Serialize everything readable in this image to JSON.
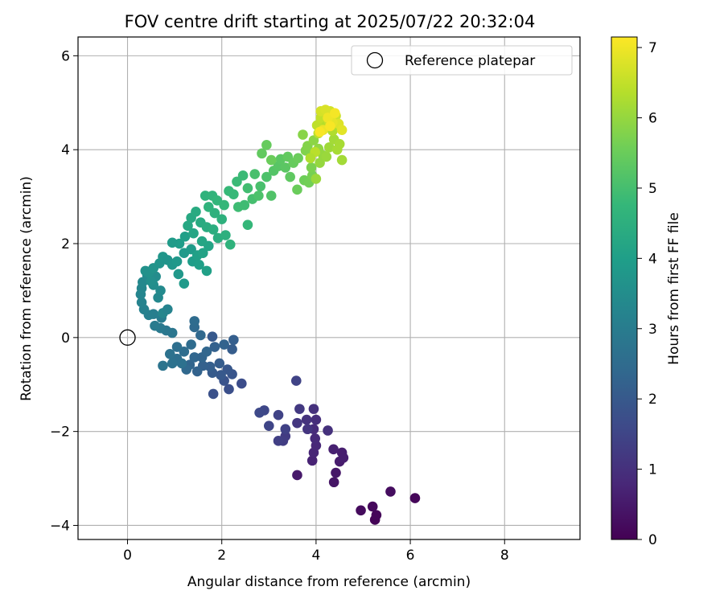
{
  "chart_data": {
    "type": "scatter",
    "title": "FOV centre drift starting at 2025/07/22 20:32:04",
    "xlabel": "Angular distance from reference (arcmin)",
    "ylabel": "Rotation from reference (arcmin)",
    "xlim": [
      -1.05,
      9.6
    ],
    "ylim": [
      -4.3,
      6.4
    ],
    "xticks": [
      0,
      2,
      4,
      6,
      8
    ],
    "yticks": [
      -4,
      -2,
      0,
      2,
      4,
      6
    ],
    "grid": true,
    "legend": {
      "placement": "top-right",
      "entries": [
        "Reference platepar"
      ]
    },
    "reference_point": {
      "x": 0,
      "y": 0
    },
    "colorbar": {
      "label": "Hours from first FF file",
      "colormap": "viridis",
      "range": [
        0,
        7.15
      ],
      "ticks": [
        0,
        1,
        2,
        3,
        4,
        5,
        6,
        7
      ]
    },
    "colormap_stops": [
      "#440154",
      "#482878",
      "#3e4989",
      "#31688e",
      "#26828e",
      "#1f9e89",
      "#35b779",
      "#6ece58",
      "#b5de2b",
      "#fde725"
    ],
    "series": [
      {
        "points": [
          [
            5.25,
            -3.88,
            0.05
          ],
          [
            5.28,
            -3.78,
            0.1
          ],
          [
            5.2,
            -3.6,
            0.15
          ],
          [
            4.95,
            -3.68,
            0.2
          ],
          [
            5.58,
            -3.28,
            0.25
          ],
          [
            6.1,
            -3.42,
            0.1
          ],
          [
            4.38,
            -3.08,
            0.4
          ],
          [
            4.42,
            -2.88,
            0.45
          ],
          [
            3.6,
            -2.93,
            0.5
          ],
          [
            4.5,
            -2.64,
            0.55
          ],
          [
            4.55,
            -2.45,
            0.6
          ],
          [
            4.58,
            -2.56,
            0.6
          ],
          [
            4.37,
            -2.38,
            0.65
          ],
          [
            3.92,
            -2.62,
            0.7
          ],
          [
            3.95,
            -2.45,
            0.75
          ],
          [
            4.0,
            -2.3,
            0.8
          ],
          [
            3.98,
            -2.15,
            0.85
          ],
          [
            3.95,
            -1.95,
            0.9
          ],
          [
            4.0,
            -1.75,
            0.95
          ],
          [
            3.95,
            -1.52,
            1.0
          ],
          [
            4.25,
            -1.98,
            1.0
          ],
          [
            3.8,
            -1.75,
            1.05
          ],
          [
            3.82,
            -1.95,
            1.1
          ],
          [
            3.6,
            -1.82,
            1.15
          ],
          [
            3.65,
            -1.52,
            1.2
          ],
          [
            3.35,
            -2.1,
            1.25
          ],
          [
            3.3,
            -2.2,
            1.3
          ],
          [
            3.2,
            -2.2,
            1.35
          ],
          [
            3.35,
            -1.95,
            1.4
          ],
          [
            3.2,
            -1.65,
            1.45
          ],
          [
            3.0,
            -1.88,
            1.5
          ],
          [
            2.9,
            -1.55,
            1.55
          ],
          [
            2.8,
            -1.6,
            1.6
          ],
          [
            3.58,
            -0.92,
            1.45
          ],
          [
            2.42,
            -0.98,
            1.7
          ],
          [
            2.15,
            -1.1,
            1.75
          ],
          [
            1.82,
            -1.2,
            1.8
          ],
          [
            2.05,
            -0.92,
            1.85
          ],
          [
            2.22,
            -0.78,
            1.9
          ],
          [
            2.12,
            -0.68,
            1.95
          ],
          [
            1.98,
            -0.8,
            2.0
          ],
          [
            1.8,
            -0.75,
            2.05
          ],
          [
            1.95,
            -0.55,
            2.1
          ],
          [
            1.75,
            -0.62,
            2.15
          ],
          [
            1.6,
            -0.6,
            2.2
          ],
          [
            1.48,
            -0.72,
            2.25
          ],
          [
            1.32,
            -0.58,
            2.3
          ],
          [
            1.42,
            -0.42,
            2.35
          ],
          [
            1.25,
            -0.68,
            2.4
          ],
          [
            1.58,
            -0.42,
            2.3
          ],
          [
            1.68,
            -0.3,
            2.35
          ],
          [
            1.85,
            -0.2,
            2.2
          ],
          [
            2.05,
            -0.15,
            2.25
          ],
          [
            2.22,
            -0.25,
            2.1
          ],
          [
            2.25,
            -0.05,
            2.15
          ],
          [
            1.8,
            0.02,
            2.0
          ],
          [
            1.55,
            0.05,
            2.4
          ],
          [
            1.42,
            0.22,
            2.45
          ],
          [
            1.42,
            0.35,
            2.5
          ],
          [
            1.35,
            -0.15,
            2.5
          ],
          [
            1.2,
            -0.3,
            2.55
          ],
          [
            1.05,
            -0.45,
            2.6
          ],
          [
            1.15,
            -0.55,
            2.65
          ],
          [
            0.95,
            -0.55,
            2.7
          ],
          [
            0.75,
            -0.6,
            2.75
          ],
          [
            1.05,
            -0.2,
            2.6
          ],
          [
            0.9,
            -0.35,
            2.7
          ],
          [
            0.95,
            0.1,
            2.8
          ],
          [
            0.82,
            0.15,
            2.85
          ],
          [
            0.7,
            0.2,
            2.9
          ],
          [
            0.58,
            0.25,
            2.95
          ],
          [
            0.72,
            0.42,
            3.0
          ],
          [
            0.55,
            0.5,
            3.05
          ],
          [
            0.45,
            0.48,
            3.1
          ],
          [
            0.35,
            0.6,
            3.15
          ],
          [
            0.3,
            0.75,
            3.2
          ],
          [
            0.28,
            0.92,
            3.25
          ],
          [
            0.3,
            1.05,
            3.3
          ],
          [
            0.32,
            1.18,
            3.35
          ],
          [
            0.42,
            1.32,
            3.4
          ],
          [
            0.6,
            1.3,
            3.45
          ],
          [
            0.75,
            0.52,
            3.3
          ],
          [
            0.85,
            0.6,
            3.2
          ],
          [
            0.65,
            0.85,
            3.35
          ],
          [
            0.7,
            1.0,
            3.4
          ],
          [
            0.55,
            1.12,
            3.5
          ],
          [
            0.5,
            1.2,
            3.55
          ],
          [
            0.45,
            1.38,
            3.6
          ],
          [
            0.38,
            1.42,
            3.6
          ],
          [
            0.55,
            1.48,
            3.65
          ],
          [
            0.68,
            1.58,
            3.7
          ],
          [
            0.75,
            1.72,
            3.75
          ],
          [
            0.85,
            1.65,
            3.7
          ],
          [
            0.95,
            1.55,
            3.75
          ],
          [
            1.08,
            1.35,
            3.8
          ],
          [
            1.2,
            1.15,
            3.85
          ],
          [
            1.05,
            1.62,
            3.8
          ],
          [
            1.2,
            1.8,
            3.85
          ],
          [
            1.35,
            1.88,
            3.9
          ],
          [
            1.1,
            2.0,
            3.95
          ],
          [
            0.95,
            2.02,
            3.9
          ],
          [
            1.22,
            2.15,
            4.0
          ],
          [
            1.38,
            1.62,
            3.95
          ],
          [
            1.52,
            1.55,
            4.0
          ],
          [
            1.48,
            1.75,
            4.05
          ],
          [
            1.6,
            1.8,
            4.1
          ],
          [
            1.68,
            1.42,
            4.05
          ],
          [
            1.72,
            1.95,
            4.15
          ],
          [
            1.58,
            2.05,
            4.2
          ],
          [
            1.4,
            2.22,
            4.2
          ],
          [
            1.28,
            2.38,
            4.25
          ],
          [
            1.35,
            2.55,
            4.3
          ],
          [
            1.45,
            2.68,
            4.35
          ],
          [
            1.55,
            2.45,
            4.35
          ],
          [
            1.68,
            2.35,
            4.4
          ],
          [
            1.82,
            2.3,
            4.45
          ],
          [
            1.92,
            2.12,
            4.45
          ],
          [
            2.08,
            2.18,
            4.5
          ],
          [
            2.0,
            2.52,
            4.55
          ],
          [
            1.85,
            2.65,
            4.55
          ],
          [
            1.72,
            2.78,
            4.6
          ],
          [
            1.65,
            3.02,
            4.6
          ],
          [
            1.8,
            3.02,
            4.65
          ],
          [
            1.9,
            2.92,
            4.7
          ],
          [
            2.05,
            2.82,
            4.75
          ],
          [
            2.15,
            3.12,
            4.8
          ],
          [
            2.25,
            3.05,
            4.8
          ],
          [
            2.32,
            3.32,
            4.85
          ],
          [
            2.45,
            3.45,
            4.85
          ],
          [
            2.35,
            2.78,
            4.9
          ],
          [
            2.48,
            2.82,
            4.9
          ],
          [
            2.55,
            3.18,
            4.95
          ],
          [
            2.65,
            2.95,
            5.0
          ],
          [
            2.7,
            3.48,
            5.05
          ],
          [
            2.82,
            3.22,
            5.05
          ],
          [
            2.78,
            3.02,
            5.1
          ],
          [
            2.95,
            3.42,
            5.1
          ],
          [
            2.18,
            1.98,
            4.6
          ],
          [
            2.55,
            2.4,
            4.75
          ],
          [
            3.05,
            3.02,
            5.15
          ],
          [
            3.1,
            3.55,
            5.2
          ],
          [
            3.2,
            3.65,
            5.25
          ],
          [
            3.25,
            3.8,
            5.3
          ],
          [
            3.35,
            3.62,
            5.3
          ],
          [
            3.45,
            3.42,
            5.35
          ],
          [
            3.4,
            3.85,
            5.4
          ],
          [
            3.52,
            3.72,
            5.45
          ],
          [
            3.62,
            3.82,
            5.5
          ],
          [
            3.6,
            3.15,
            5.5
          ],
          [
            3.75,
            3.35,
            5.55
          ],
          [
            3.85,
            3.3,
            5.6
          ],
          [
            3.92,
            3.45,
            5.65
          ],
          [
            3.9,
            3.62,
            5.7
          ],
          [
            3.78,
            3.98,
            5.75
          ],
          [
            3.82,
            4.08,
            5.8
          ],
          [
            2.85,
            3.92,
            5.4
          ],
          [
            2.95,
            4.1,
            5.45
          ],
          [
            3.05,
            3.78,
            5.5
          ],
          [
            3.72,
            4.32,
            5.85
          ],
          [
            3.95,
            4.2,
            5.9
          ],
          [
            4.05,
            4.02,
            5.95
          ],
          [
            4.15,
            3.88,
            6.0
          ],
          [
            4.08,
            3.72,
            6.0
          ],
          [
            4.0,
            3.38,
            6.05
          ],
          [
            4.22,
            3.85,
            6.05
          ],
          [
            4.28,
            4.05,
            6.1
          ],
          [
            4.38,
            4.22,
            6.15
          ],
          [
            4.55,
            3.78,
            6.15
          ],
          [
            4.45,
            4.0,
            6.2
          ],
          [
            4.5,
            4.12,
            6.2
          ],
          [
            4.35,
            4.4,
            6.3
          ],
          [
            4.2,
            4.52,
            6.35
          ],
          [
            4.05,
            4.35,
            6.4
          ],
          [
            4.02,
            4.52,
            6.45
          ],
          [
            4.1,
            4.68,
            6.5
          ],
          [
            4.28,
            4.6,
            6.55
          ],
          [
            4.42,
            4.72,
            6.6
          ],
          [
            4.3,
            4.82,
            6.65
          ],
          [
            4.1,
            4.82,
            6.7
          ],
          [
            4.2,
            4.85,
            6.75
          ],
          [
            4.48,
            4.55,
            6.8
          ],
          [
            4.55,
            4.42,
            6.85
          ],
          [
            4.35,
            4.58,
            6.9
          ],
          [
            4.15,
            4.42,
            6.95
          ],
          [
            4.25,
            4.68,
            7.0
          ],
          [
            4.4,
            4.78,
            7.05
          ],
          [
            4.08,
            4.38,
            7.1
          ],
          [
            4.3,
            4.5,
            7.1
          ],
          [
            3.98,
            3.95,
            6.4
          ],
          [
            3.88,
            3.82,
            6.3
          ]
        ]
      }
    ]
  }
}
